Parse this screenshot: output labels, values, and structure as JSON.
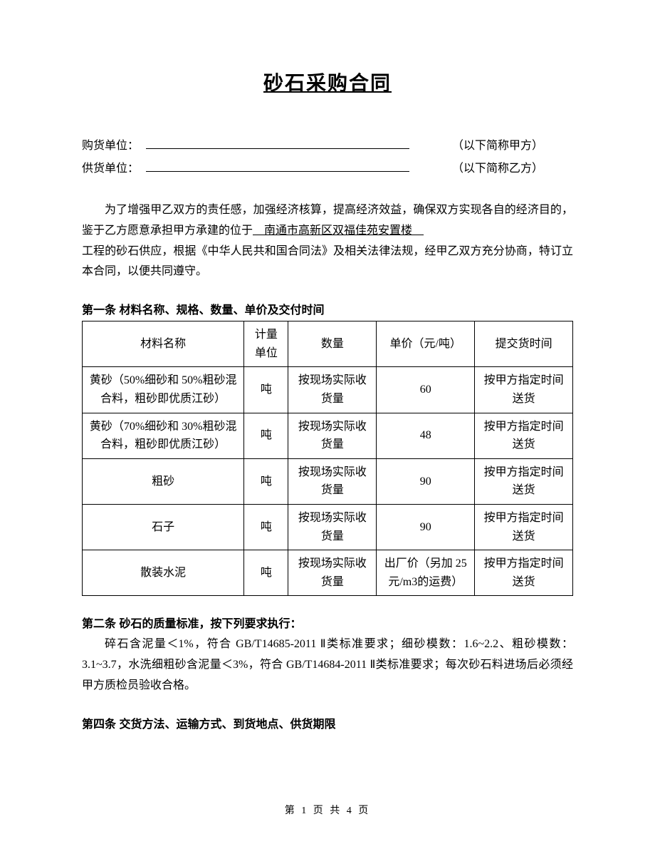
{
  "title": "砂石采购合同",
  "parties": {
    "buyer_label": "购货单位：",
    "buyer_suffix": "（以下简称甲方）",
    "seller_label": "供货单位：",
    "seller_suffix": "（以下简称乙方）"
  },
  "intro": {
    "line1_pre": "为了增强甲乙双方的责任感，加强经济核算，提高经济效益，确保双方实现各自的经济目的，鉴于乙方愿意承担甲方承建的位于",
    "project_name": "　南通市高新区双福佳苑安置楼　",
    "line2": "工程的砂石供应，根据《中华人民共和国合同法》及相关法律法规，经甲乙双方充分协商，特订立本合同，以便共同遵守。"
  },
  "section1": {
    "heading": "第一条 材料名称、规格、数量、单价及交付时间",
    "table": {
      "headers": {
        "name": "材料名称",
        "unit": "计量单位",
        "qty": "数量",
        "price": "单价（元/吨）",
        "time": "提交货时间"
      },
      "rows": [
        {
          "name": "黄砂（50%细砂和 50%粗砂混合料，粗砂即优质江砂）",
          "unit": "吨",
          "qty": "按现场实际收货量",
          "price": "60",
          "time": "按甲方指定时间送货"
        },
        {
          "name": "黄砂（70%细砂和 30%粗砂混合料，粗砂即优质江砂）",
          "unit": "吨",
          "qty": "按现场实际收货量",
          "price": "48",
          "time": "按甲方指定时间送货"
        },
        {
          "name": "粗砂",
          "unit": "吨",
          "qty": "按现场实际收货量",
          "price": "90",
          "time": "按甲方指定时间送货"
        },
        {
          "name": "石子",
          "unit": "吨",
          "qty": "按现场实际收货量",
          "price": "90",
          "time": "按甲方指定时间送货"
        },
        {
          "name": "散装水泥",
          "unit": "吨",
          "qty": "按现场实际收货量",
          "price": "出厂价（另加 25 元/m3的运费）",
          "time": "按甲方指定时间送货"
        }
      ]
    }
  },
  "section2": {
    "heading": "第二条 砂石的质量标准，按下列要求执行：",
    "body": "碎石含泥量＜1%，符合 GB/T14685-2011 Ⅱ类标准要求；细砂模数：1.6~2.2、粗砂模数：3.1~3.7，水洗细粗砂含泥量＜3%，符合 GB/T14684-2011 Ⅱ类标准要求；每次砂石料进场后必须经甲方质检员验收合格。"
  },
  "section4": {
    "heading": "第四条 交货方法、运输方式、到货地点、供货期限"
  },
  "footer": "第 1 页 共 4 页"
}
